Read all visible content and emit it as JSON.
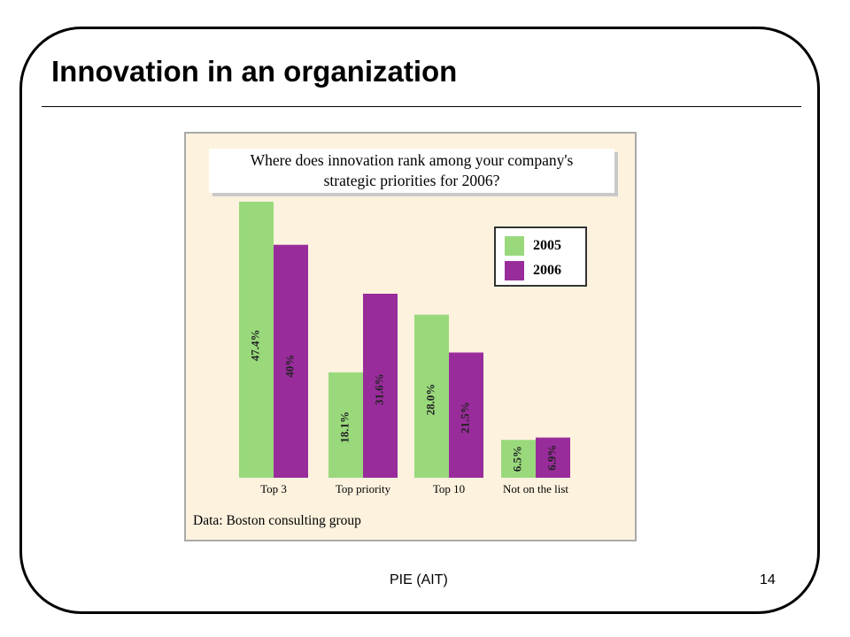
{
  "slide": {
    "title": "Innovation in an organization",
    "footer_center": "PIE (AIT)",
    "page_number": "14"
  },
  "chart_data": {
    "type": "bar",
    "title": "Where does innovation rank among your company's strategic priorities for 2006?",
    "title_lines": [
      "Where does innovation rank among your company's",
      "strategic priorities for 2006?"
    ],
    "categories": [
      "Top 3",
      "Top priority",
      "Top 10",
      "Not on the list"
    ],
    "series": [
      {
        "name": "2005",
        "color": "#99d97c",
        "values": [
          47.4,
          18.1,
          28.0,
          6.5
        ],
        "labels": [
          "47.4%",
          "18.1%",
          "28.0%",
          "6.5%"
        ]
      },
      {
        "name": "2006",
        "color": "#992c9b",
        "values": [
          40,
          31.6,
          21.5,
          6.9
        ],
        "labels": [
          "40%",
          "31.6%",
          "21.5%",
          "6.9%"
        ]
      }
    ],
    "ylim": [
      0,
      47.4
    ],
    "legend_position": "top-right",
    "source": "Data: Boston consulting group",
    "grid": false
  }
}
